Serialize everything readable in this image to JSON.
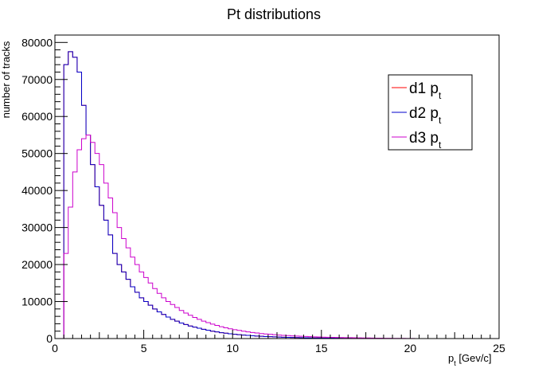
{
  "chart_data": {
    "type": "histogram",
    "title": "Pt distributions",
    "xlabel_main": "p",
    "xlabel_sub": "t",
    "xlabel_rest": " [Gev/c]",
    "ylabel": "number of tracks",
    "xlim": [
      0,
      25
    ],
    "ylim": [
      0,
      82000
    ],
    "bin_width": 0.25,
    "x_ticks": [
      0,
      5,
      10,
      15,
      20,
      25
    ],
    "x_tick_labels": [
      "0",
      "5",
      "10",
      "15",
      "20",
      "25"
    ],
    "y_ticks": [
      0,
      10000,
      20000,
      30000,
      40000,
      50000,
      60000,
      70000,
      80000
    ],
    "y_tick_labels": [
      "0",
      "10000",
      "20000",
      "30000",
      "40000",
      "50000",
      "60000",
      "70000",
      "80000"
    ],
    "grid": false,
    "legend_position": "top-right",
    "series": [
      {
        "name": "d1 p",
        "name_sub": "t",
        "color": "#ff0000",
        "values": [
          0,
          0,
          74000,
          77500,
          76000,
          72000,
          63000,
          55000,
          47000,
          41000,
          36000,
          32000,
          28000,
          23000,
          20000,
          18000,
          16000,
          14000,
          12500,
          11000,
          10000,
          9000,
          8000,
          7200,
          6500,
          5800,
          5200,
          4700,
          4200,
          3800,
          3400,
          3100,
          2800,
          2500,
          2250,
          2000,
          1800,
          1600,
          1450,
          1300,
          1150,
          1050,
          950,
          850,
          750,
          680,
          610,
          550,
          500,
          450,
          400,
          360,
          320,
          290,
          260,
          230,
          210,
          190,
          170,
          150,
          135,
          120,
          110,
          100,
          90,
          80,
          70,
          60,
          50,
          40,
          30,
          20,
          0
        ]
      },
      {
        "name": "d2 p",
        "name_sub": "t",
        "color": "#0000cc",
        "values": [
          0,
          0,
          74000,
          77500,
          76000,
          72000,
          63000,
          55000,
          47000,
          41000,
          36000,
          32000,
          28000,
          23000,
          20000,
          18000,
          16000,
          14000,
          12500,
          11000,
          10000,
          9000,
          8000,
          7200,
          6500,
          5800,
          5200,
          4700,
          4200,
          3800,
          3400,
          3100,
          2800,
          2500,
          2250,
          2000,
          1800,
          1600,
          1450,
          1300,
          1150,
          1050,
          950,
          850,
          750,
          680,
          610,
          550,
          500,
          450,
          400,
          360,
          320,
          290,
          260,
          230,
          210,
          190,
          170,
          150,
          135,
          120,
          110,
          100,
          90,
          80,
          70,
          60,
          50,
          40,
          30,
          20,
          0
        ]
      },
      {
        "name": "d3 p",
        "name_sub": "t",
        "color": "#cc00cc",
        "values": [
          0,
          0,
          23000,
          35500,
          45000,
          51000,
          54000,
          55000,
          53000,
          50000,
          47000,
          42000,
          38000,
          34000,
          30000,
          27000,
          24500,
          22000,
          20000,
          18000,
          16500,
          15000,
          13500,
          12200,
          11000,
          10000,
          9200,
          8400,
          7600,
          6900,
          6300,
          5700,
          5200,
          4700,
          4300,
          3900,
          3550,
          3200,
          2900,
          2650,
          2400,
          2200,
          2000,
          1800,
          1650,
          1500,
          1350,
          1250,
          1150,
          1050,
          950,
          870,
          800,
          730,
          670,
          610,
          560,
          510,
          470,
          430,
          390,
          360,
          330,
          300,
          270,
          250,
          230,
          210,
          190,
          170,
          150,
          130,
          110,
          95,
          80,
          70,
          60,
          50,
          40,
          30,
          20,
          10,
          0
        ]
      }
    ]
  }
}
